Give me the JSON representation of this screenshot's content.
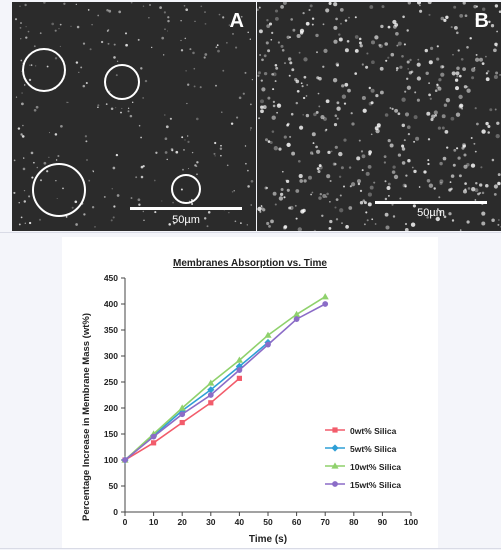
{
  "figure": {
    "panels": [
      {
        "letter": "A",
        "scale_label": "50µm"
      },
      {
        "letter": "B",
        "scale_label": "50µm"
      }
    ]
  },
  "colors": {
    "micrograph_background": "#2b2b2b",
    "0wt% Silica": "#f25c6b",
    "5wt% Silica": "#2e9fd6",
    "10wt% Silica": "#8fd16c",
    "15wt% Silica": "#8b6cc7"
  },
  "chart_data": {
    "type": "line",
    "title": "Membranes Absorption vs. Time",
    "xlabel": "Time (s)",
    "ylabel": "Percentage Increase in Membrane Mass (wt%)",
    "xlim": [
      0,
      100
    ],
    "ylim": [
      0,
      450
    ],
    "xticks": [
      0,
      10,
      20,
      30,
      40,
      50,
      60,
      70,
      80,
      90,
      100
    ],
    "yticks": [
      0,
      50,
      100,
      150,
      200,
      250,
      300,
      350,
      400,
      450
    ],
    "grid": false,
    "legend_position": "bottom-right",
    "series": [
      {
        "name": "0wt% Silica",
        "color": "#f25c6b",
        "marker": "square",
        "x": [
          0,
          10,
          20,
          30,
          40
        ],
        "y": [
          100,
          133,
          172,
          210,
          257
        ]
      },
      {
        "name": "5wt% Silica",
        "color": "#2e9fd6",
        "marker": "diamond",
        "x": [
          0,
          10,
          20,
          30,
          40,
          50
        ],
        "y": [
          100,
          147,
          195,
          235,
          280,
          326
        ]
      },
      {
        "name": "10wt% Silica",
        "color": "#8fd16c",
        "marker": "triangle",
        "x": [
          0,
          10,
          20,
          30,
          40,
          50,
          60,
          70
        ],
        "y": [
          100,
          150,
          200,
          248,
          292,
          340,
          380,
          414
        ]
      },
      {
        "name": "15wt% Silica",
        "color": "#8b6cc7",
        "marker": "circle",
        "x": [
          0,
          10,
          20,
          30,
          40,
          50,
          60,
          70
        ],
        "y": [
          100,
          145,
          188,
          225,
          273,
          322,
          371,
          400
        ]
      }
    ]
  }
}
